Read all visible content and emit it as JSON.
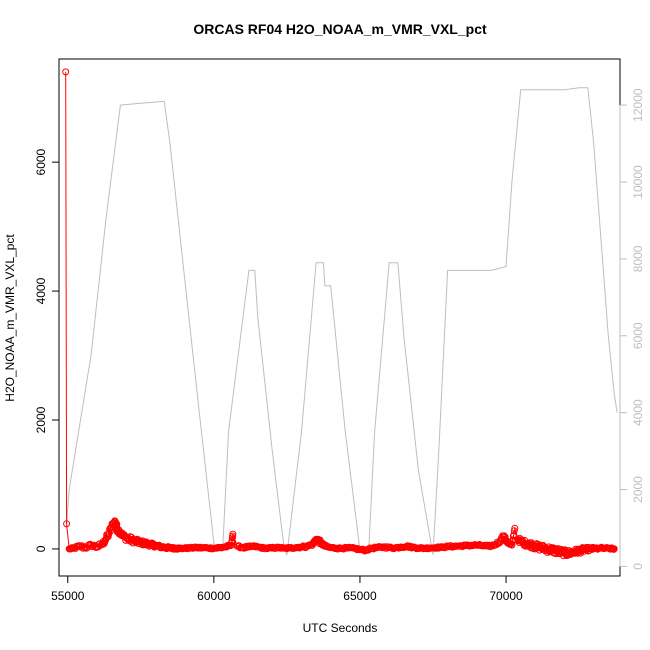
{
  "chart_data": {
    "type": "scatter",
    "title": "ORCAS RF04 H2O_NOAA_m_VMR_VXL_pct",
    "xlabel": "UTC Seconds",
    "ylabel": "H2O_NOAA_m_VMR_VXL_pct",
    "y2label": "",
    "xlim": [
      54700,
      73900
    ],
    "ylim": [
      -420,
      7600
    ],
    "y2lim": [
      -250,
      13200
    ],
    "grid": false,
    "legend": "none",
    "x_ticks": [
      55000,
      60000,
      65000,
      70000
    ],
    "x_tick_labels": [
      "55000",
      "60000",
      "65000",
      "70000"
    ],
    "y_ticks": [
      0,
      2000,
      4000,
      6000
    ],
    "y_tick_labels": [
      "0",
      "2000",
      "4000",
      "6000"
    ],
    "y2_ticks": [
      0,
      2000,
      4000,
      6000,
      8000,
      10000,
      12000
    ],
    "y2_tick_labels": [
      "0",
      "2000",
      "4000",
      "6000",
      "8000",
      "10000",
      "12000"
    ],
    "colors": {
      "series_primary": "#ff0000",
      "series_secondary": "#bebebe",
      "axis": "#000000",
      "axis_right": "#bebebe"
    },
    "series": [
      {
        "axis": "left",
        "style": "points",
        "x": [
          54930,
          54960,
          55050,
          55200,
          55400,
          55600,
          55800,
          56000,
          56200,
          56300,
          56400,
          56500,
          56600,
          56650,
          56700,
          56800,
          56900,
          57000,
          57100,
          57200,
          57300,
          57400,
          57500,
          57600,
          57700,
          57800,
          57900,
          58000,
          58100,
          58200,
          58300,
          58400,
          58500,
          58600,
          58700,
          58800,
          59000,
          59200,
          59400,
          59600,
          59800,
          60000,
          60200,
          60400,
          60600,
          60650,
          60800,
          61000,
          61200,
          61400,
          61600,
          61800,
          62000,
          62200,
          62400,
          62600,
          62800,
          63000,
          63200,
          63400,
          63500,
          63600,
          63700,
          63800,
          64000,
          64200,
          64400,
          64600,
          64800,
          65000,
          65200,
          65400,
          65600,
          65800,
          66000,
          66200,
          66400,
          66600,
          66800,
          67000,
          67200,
          67400,
          67600,
          67800,
          68000,
          68200,
          68400,
          68600,
          68800,
          69000,
          69200,
          69400,
          69600,
          69800,
          69900,
          70000,
          70100,
          70200,
          70300,
          70400,
          70500,
          70600,
          70700,
          70800,
          70900,
          71000,
          71100,
          71200,
          71300,
          71400,
          71500,
          71600,
          71700,
          71800,
          71900,
          72000,
          72100,
          72200,
          72300,
          72400,
          72500,
          72600,
          72700,
          72800,
          72900,
          73000,
          73200,
          73400,
          73600,
          73700
        ],
        "y": [
          7400,
          390,
          0,
          10,
          40,
          20,
          60,
          30,
          80,
          150,
          230,
          340,
          420,
          380,
          300,
          260,
          200,
          170,
          150,
          140,
          120,
          110,
          100,
          90,
          80,
          70,
          60,
          50,
          40,
          30,
          25,
          20,
          15,
          10,
          10,
          8,
          10,
          15,
          20,
          18,
          15,
          10,
          20,
          30,
          60,
          230,
          40,
          20,
          30,
          40,
          20,
          10,
          15,
          20,
          10,
          15,
          20,
          30,
          40,
          80,
          150,
          120,
          80,
          40,
          20,
          10,
          10,
          15,
          10,
          -10,
          -20,
          10,
          20,
          30,
          20,
          15,
          30,
          40,
          25,
          15,
          10,
          15,
          20,
          25,
          35,
          40,
          45,
          50,
          55,
          60,
          50,
          40,
          60,
          120,
          200,
          140,
          80,
          60,
          320,
          150,
          120,
          100,
          80,
          70,
          60,
          40,
          30,
          20,
          10,
          0,
          -10,
          -20,
          -30,
          -40,
          -50,
          -60,
          -70,
          -60,
          -50,
          -40,
          -30,
          -20,
          -10,
          -5,
          0,
          5,
          10,
          10,
          5,
          0
        ],
        "noise": [
          0,
          0,
          10,
          15,
          25,
          30,
          25,
          30,
          35,
          45,
          50,
          55,
          55,
          55,
          50,
          45,
          40,
          45,
          50,
          45,
          40,
          40,
          35,
          35,
          35,
          30,
          30,
          25,
          25,
          20,
          20,
          20,
          15,
          15,
          15,
          15,
          12,
          12,
          12,
          12,
          12,
          12,
          15,
          15,
          15,
          0,
          15,
          15,
          15,
          15,
          12,
          12,
          12,
          12,
          12,
          12,
          12,
          15,
          18,
          25,
          40,
          35,
          25,
          20,
          15,
          12,
          12,
          12,
          12,
          15,
          15,
          15,
          15,
          15,
          15,
          15,
          15,
          15,
          15,
          12,
          12,
          12,
          12,
          12,
          15,
          15,
          15,
          15,
          15,
          15,
          15,
          15,
          20,
          25,
          30,
          30,
          25,
          20,
          0,
          35,
          40,
          45,
          45,
          45,
          50,
          50,
          50,
          50,
          50,
          55,
          55,
          55,
          55,
          55,
          50,
          50,
          50,
          50,
          45,
          45,
          40,
          40,
          35,
          30,
          25,
          20,
          20,
          15,
          12,
          10
        ]
      },
      {
        "axis": "right",
        "style": "line",
        "x": [
          54950,
          55050,
          55800,
          56300,
          56800,
          57500,
          58300,
          58500,
          59000,
          59500,
          60000,
          60100,
          60300,
          60500,
          61200,
          61400,
          61500,
          62000,
          62400,
          62500,
          63000,
          63500,
          63600,
          63750,
          63800,
          64000,
          64300,
          64500,
          65000,
          65300,
          65500,
          66000,
          66300,
          66500,
          67000,
          67500,
          67700,
          68000,
          68500,
          69000,
          69500,
          70000,
          70200,
          70500,
          71000,
          71500,
          72000,
          72500,
          72800,
          73000,
          73500,
          73700,
          73800
        ],
        "y": [
          1000,
          2000,
          5500,
          9000,
          12000,
          12050,
          12100,
          11000,
          7500,
          4000,
          600,
          400,
          400,
          3500,
          7700,
          7700,
          6500,
          3000,
          500,
          300,
          3500,
          7900,
          7900,
          7900,
          7300,
          7300,
          5000,
          3500,
          400,
          400,
          3500,
          7900,
          7900,
          6000,
          2500,
          300,
          3000,
          7700,
          7700,
          7700,
          7700,
          7800,
          10000,
          12400,
          12400,
          12400,
          12400,
          12450,
          12450,
          11000,
          6000,
          4500,
          4000
        ]
      }
    ]
  }
}
